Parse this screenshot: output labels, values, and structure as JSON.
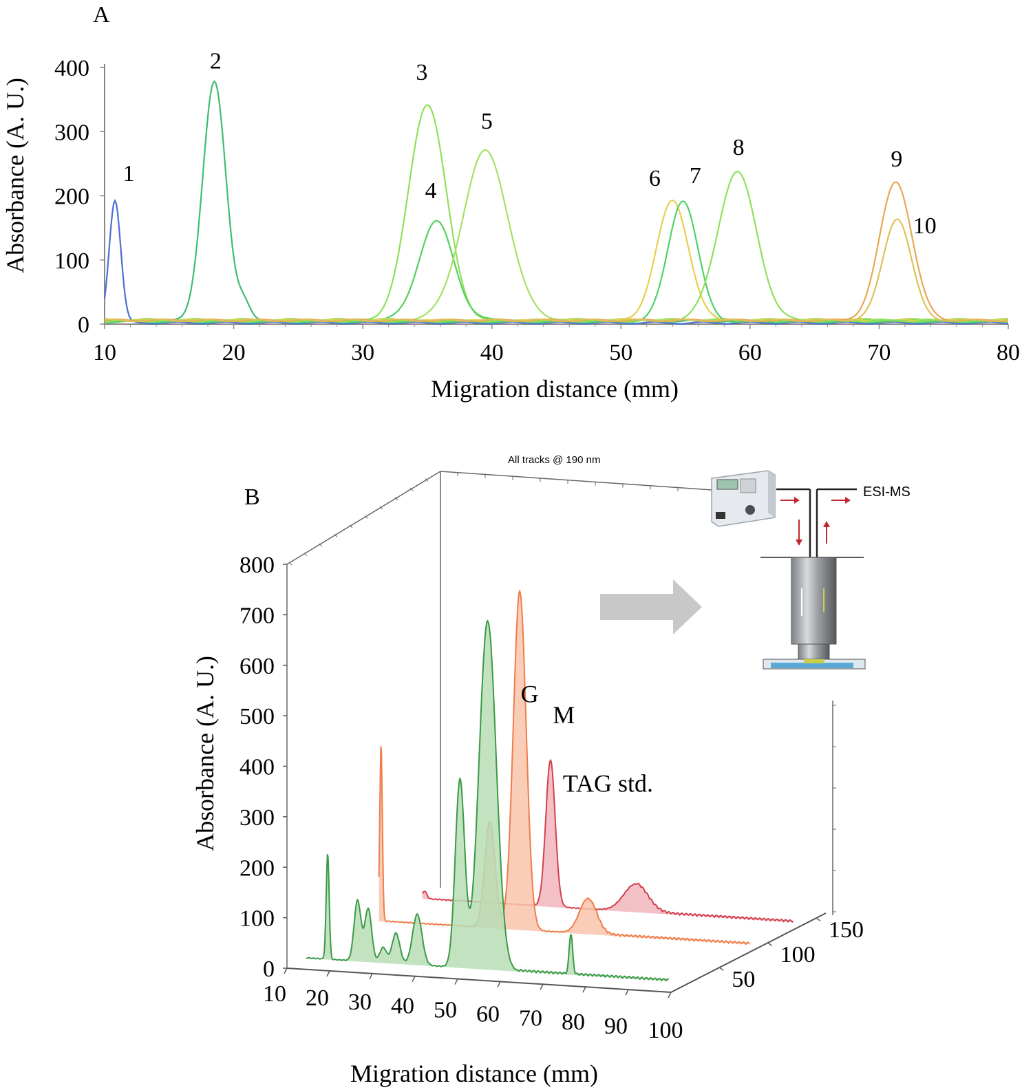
{
  "chart_data": [
    {
      "panel": "A",
      "type": "line",
      "xlabel": "Migration distance (mm)",
      "ylabel": "Absorbance (A. U.)",
      "xlim": [
        10,
        80
      ],
      "ylim": [
        0,
        400
      ],
      "xticks": [
        10,
        20,
        30,
        40,
        50,
        60,
        70,
        80
      ],
      "yticks": [
        0,
        100,
        200,
        300,
        400
      ],
      "series": [
        {
          "label": "1",
          "color": "#4a6fd4",
          "peak_x": 10.8,
          "peak_y": 193,
          "width": 0.45,
          "baseline": 2
        },
        {
          "label": "2",
          "color": "#3dbd73",
          "peak_x": 18.5,
          "peak_y": 377,
          "width": 0.9,
          "baseline": 5,
          "minor": [
            [
              20.8,
              28,
              0.5
            ]
          ]
        },
        {
          "label": "3",
          "color": "#8fe05a",
          "peak_x": 35.0,
          "peak_y": 343,
          "width": 1.45,
          "baseline": 6
        },
        {
          "label": "4",
          "color": "#52d15a",
          "peak_x": 35.7,
          "peak_y": 160,
          "width": 1.35,
          "baseline": 6
        },
        {
          "label": "5",
          "color": "#a6e063",
          "peak_x": 39.5,
          "peak_y": 270,
          "width": 1.75,
          "baseline": 7
        },
        {
          "label": "6",
          "color": "#e8cf4c",
          "peak_x": 54.0,
          "peak_y": 192,
          "width": 1.25,
          "baseline": 5
        },
        {
          "label": "7",
          "color": "#4fd16a",
          "peak_x": 54.8,
          "peak_y": 193,
          "width": 1.15,
          "baseline": 4
        },
        {
          "label": "8",
          "color": "#8fe05a",
          "peak_x": 59.0,
          "peak_y": 237,
          "width": 1.5,
          "baseline": 5
        },
        {
          "label": "9",
          "color": "#eaa653",
          "peak_x": 71.3,
          "peak_y": 222,
          "width": 1.25,
          "baseline": 6
        },
        {
          "label": "10",
          "color": "#dfc05a",
          "peak_x": 71.4,
          "peak_y": 165,
          "width": 1.1,
          "baseline": 6
        }
      ]
    },
    {
      "panel": "B",
      "type": "area",
      "title": "All tracks @ 190 nm",
      "xlabel": "Migration distance (mm)",
      "ylabel": "Absorbance (A. U.)",
      "xlim": [
        10,
        100
      ],
      "ylim": [
        0,
        800
      ],
      "xticks": [
        10,
        20,
        30,
        40,
        50,
        60,
        70,
        80,
        90,
        100
      ],
      "yticks": [
        0,
        100,
        200,
        300,
        400,
        500,
        600,
        700,
        800
      ],
      "zticks": [
        50,
        100,
        150
      ],
      "series": [
        {
          "label": "G",
          "color": "#3a9a46",
          "fill": "#b7ddb5",
          "z": 20,
          "peaks": [
            [
              15,
              210,
              0.35
            ],
            [
              22,
              120,
              0.8
            ],
            [
              24.5,
              105,
              0.8
            ],
            [
              28,
              30,
              0.8
            ],
            [
              31,
              60,
              0.9
            ],
            [
              36,
              100,
              1.1
            ],
            [
              46,
              370,
              1.1
            ],
            [
              52.5,
              690,
              2.0
            ],
            [
              72,
              80,
              0.4
            ]
          ]
        },
        {
          "label": "M",
          "color": "#ef7d4a",
          "fill": "#f8c4ac",
          "z": 95,
          "peaks": [
            [
              10.5,
              350,
              0.3
            ],
            [
              36,
              210,
              1.2
            ],
            [
              43,
              670,
              1.5
            ],
            [
              59,
              70,
              2.0
            ]
          ]
        },
        {
          "label": "TAG std.",
          "color": "#d2404d",
          "fill": "#f2b5bd",
          "z": 140,
          "peaks": [
            [
              10.5,
              15,
              0.5
            ],
            [
              40,
              290,
              1.1
            ],
            [
              60,
              55,
              2.8
            ]
          ]
        }
      ],
      "inset": {
        "label": "ESI-MS"
      }
    }
  ],
  "labels": {
    "panel_a": "A",
    "panel_b": "B",
    "b_title": "All tracks @ 190 nm",
    "esi_ms": "ESI-MS"
  }
}
